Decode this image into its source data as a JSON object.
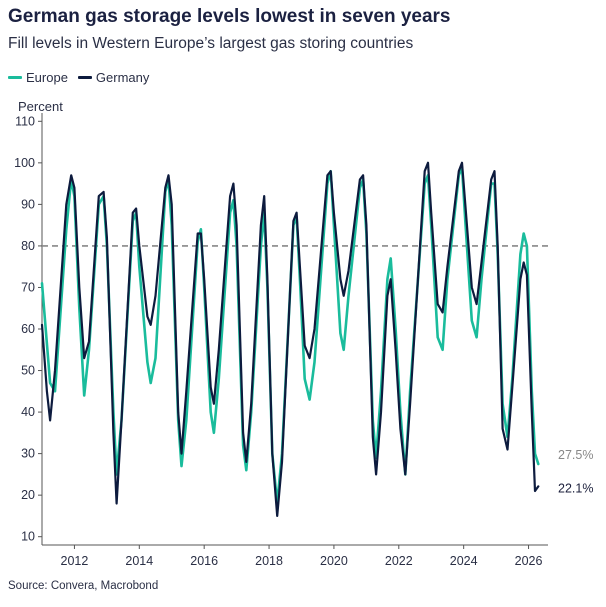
{
  "title": "German gas storage levels lowest in seven years",
  "subtitle": "Fill levels in Western Europe’s largest gas storing countries",
  "source": "Source: Convera, Macrobond",
  "colors": {
    "europe": "#1abc9c",
    "germany": "#0d1b3e",
    "reference": "#888888",
    "axis": "#555555"
  },
  "chart_data": {
    "type": "line",
    "title": "German gas storage levels lowest in seven years",
    "subtitle": "Fill levels in Western Europe’s largest gas storing countries",
    "ylabel": "Percent",
    "ylim": [
      8,
      112
    ],
    "xlim": [
      2011.0,
      2026.6
    ],
    "yticks": [
      10,
      20,
      30,
      40,
      50,
      60,
      70,
      80,
      90,
      100,
      110
    ],
    "xticks": [
      2012,
      2014,
      2016,
      2018,
      2020,
      2022,
      2024,
      2026
    ],
    "reference_line": {
      "y": 80,
      "style": "dashed"
    },
    "legend_position": "top-left",
    "series": [
      {
        "name": "Europe",
        "color": "#1abc9c",
        "end_label": "27.5%",
        "points": [
          [
            2011.0,
            71
          ],
          [
            2011.25,
            47
          ],
          [
            2011.4,
            45
          ],
          [
            2011.75,
            84
          ],
          [
            2011.9,
            96
          ],
          [
            2012.0,
            92
          ],
          [
            2012.15,
            65
          ],
          [
            2012.3,
            44
          ],
          [
            2012.45,
            55
          ],
          [
            2012.75,
            90
          ],
          [
            2012.9,
            92
          ],
          [
            2013.0,
            80
          ],
          [
            2013.2,
            40
          ],
          [
            2013.3,
            25
          ],
          [
            2013.45,
            38
          ],
          [
            2013.8,
            86
          ],
          [
            2013.9,
            88
          ],
          [
            2014.0,
            75
          ],
          [
            2014.25,
            52
          ],
          [
            2014.35,
            47
          ],
          [
            2014.5,
            53
          ],
          [
            2014.8,
            93
          ],
          [
            2014.9,
            96
          ],
          [
            2015.0,
            85
          ],
          [
            2015.2,
            38
          ],
          [
            2015.3,
            27
          ],
          [
            2015.45,
            38
          ],
          [
            2015.8,
            81
          ],
          [
            2015.9,
            84
          ],
          [
            2016.0,
            70
          ],
          [
            2016.2,
            40
          ],
          [
            2016.3,
            35
          ],
          [
            2016.45,
            48
          ],
          [
            2016.8,
            88
          ],
          [
            2016.9,
            91
          ],
          [
            2017.0,
            80
          ],
          [
            2017.2,
            32
          ],
          [
            2017.3,
            26
          ],
          [
            2017.45,
            40
          ],
          [
            2017.75,
            80
          ],
          [
            2017.85,
            88
          ],
          [
            2017.95,
            70
          ],
          [
            2018.1,
            30
          ],
          [
            2018.25,
            18
          ],
          [
            2018.4,
            30
          ],
          [
            2018.75,
            85
          ],
          [
            2018.85,
            87
          ],
          [
            2018.95,
            72
          ],
          [
            2019.1,
            48
          ],
          [
            2019.25,
            43
          ],
          [
            2019.4,
            52
          ],
          [
            2019.8,
            95
          ],
          [
            2019.9,
            98
          ],
          [
            2020.0,
            85
          ],
          [
            2020.2,
            59
          ],
          [
            2020.3,
            55
          ],
          [
            2020.45,
            68
          ],
          [
            2020.8,
            94
          ],
          [
            2020.9,
            96
          ],
          [
            2021.0,
            83
          ],
          [
            2021.2,
            38
          ],
          [
            2021.3,
            29
          ],
          [
            2021.45,
            45
          ],
          [
            2021.65,
            72
          ],
          [
            2021.75,
            77
          ],
          [
            2021.9,
            60
          ],
          [
            2022.05,
            40
          ],
          [
            2022.2,
            25
          ],
          [
            2022.35,
            45
          ],
          [
            2022.8,
            95
          ],
          [
            2022.9,
            97
          ],
          [
            2023.0,
            85
          ],
          [
            2023.2,
            58
          ],
          [
            2023.35,
            55
          ],
          [
            2023.5,
            72
          ],
          [
            2023.85,
            97
          ],
          [
            2023.95,
            99
          ],
          [
            2024.05,
            86
          ],
          [
            2024.25,
            62
          ],
          [
            2024.4,
            58
          ],
          [
            2024.55,
            72
          ],
          [
            2024.85,
            95
          ],
          [
            2024.95,
            95
          ],
          [
            2025.05,
            78
          ],
          [
            2025.2,
            42
          ],
          [
            2025.35,
            34
          ],
          [
            2025.5,
            48
          ],
          [
            2025.75,
            78
          ],
          [
            2025.85,
            83
          ],
          [
            2025.95,
            80
          ],
          [
            2026.1,
            45
          ],
          [
            2026.2,
            30
          ],
          [
            2026.3,
            27.5
          ]
        ]
      },
      {
        "name": "Germany",
        "color": "#0d1b3e",
        "end_label": "22.1%",
        "points": [
          [
            2011.0,
            61
          ],
          [
            2011.15,
            45
          ],
          [
            2011.25,
            38
          ],
          [
            2011.4,
            50
          ],
          [
            2011.75,
            90
          ],
          [
            2011.9,
            97
          ],
          [
            2012.0,
            94
          ],
          [
            2012.15,
            70
          ],
          [
            2012.3,
            53
          ],
          [
            2012.45,
            57
          ],
          [
            2012.75,
            92
          ],
          [
            2012.9,
            93
          ],
          [
            2013.0,
            82
          ],
          [
            2013.2,
            35
          ],
          [
            2013.3,
            18
          ],
          [
            2013.45,
            38
          ],
          [
            2013.8,
            88
          ],
          [
            2013.9,
            89
          ],
          [
            2014.0,
            80
          ],
          [
            2014.25,
            63
          ],
          [
            2014.35,
            61
          ],
          [
            2014.5,
            68
          ],
          [
            2014.8,
            94
          ],
          [
            2014.9,
            97
          ],
          [
            2015.0,
            90
          ],
          [
            2015.2,
            40
          ],
          [
            2015.3,
            30
          ],
          [
            2015.45,
            45
          ],
          [
            2015.8,
            83
          ],
          [
            2015.9,
            83
          ],
          [
            2016.0,
            72
          ],
          [
            2016.2,
            46
          ],
          [
            2016.3,
            42
          ],
          [
            2016.45,
            55
          ],
          [
            2016.8,
            92
          ],
          [
            2016.9,
            95
          ],
          [
            2017.0,
            85
          ],
          [
            2017.2,
            35
          ],
          [
            2017.3,
            28
          ],
          [
            2017.45,
            42
          ],
          [
            2017.75,
            85
          ],
          [
            2017.85,
            92
          ],
          [
            2017.95,
            72
          ],
          [
            2018.1,
            30
          ],
          [
            2018.25,
            15
          ],
          [
            2018.4,
            28
          ],
          [
            2018.75,
            86
          ],
          [
            2018.85,
            88
          ],
          [
            2018.95,
            75
          ],
          [
            2019.1,
            56
          ],
          [
            2019.25,
            53
          ],
          [
            2019.4,
            60
          ],
          [
            2019.8,
            97
          ],
          [
            2019.9,
            98
          ],
          [
            2020.0,
            88
          ],
          [
            2020.2,
            72
          ],
          [
            2020.3,
            68
          ],
          [
            2020.45,
            74
          ],
          [
            2020.8,
            96
          ],
          [
            2020.9,
            97
          ],
          [
            2021.0,
            85
          ],
          [
            2021.2,
            34
          ],
          [
            2021.3,
            25
          ],
          [
            2021.45,
            40
          ],
          [
            2021.65,
            68
          ],
          [
            2021.75,
            72
          ],
          [
            2021.9,
            55
          ],
          [
            2022.05,
            36
          ],
          [
            2022.2,
            25
          ],
          [
            2022.35,
            42
          ],
          [
            2022.8,
            98
          ],
          [
            2022.9,
            100
          ],
          [
            2023.0,
            88
          ],
          [
            2023.2,
            66
          ],
          [
            2023.35,
            64
          ],
          [
            2023.5,
            75
          ],
          [
            2023.85,
            98
          ],
          [
            2023.95,
            100
          ],
          [
            2024.05,
            90
          ],
          [
            2024.25,
            70
          ],
          [
            2024.4,
            66
          ],
          [
            2024.55,
            76
          ],
          [
            2024.85,
            96
          ],
          [
            2024.95,
            98
          ],
          [
            2025.05,
            80
          ],
          [
            2025.2,
            36
          ],
          [
            2025.35,
            31
          ],
          [
            2025.5,
            46
          ],
          [
            2025.75,
            72
          ],
          [
            2025.85,
            76
          ],
          [
            2025.95,
            73
          ],
          [
            2026.1,
            40
          ],
          [
            2026.2,
            21
          ],
          [
            2026.3,
            22.1
          ]
        ]
      }
    ]
  }
}
